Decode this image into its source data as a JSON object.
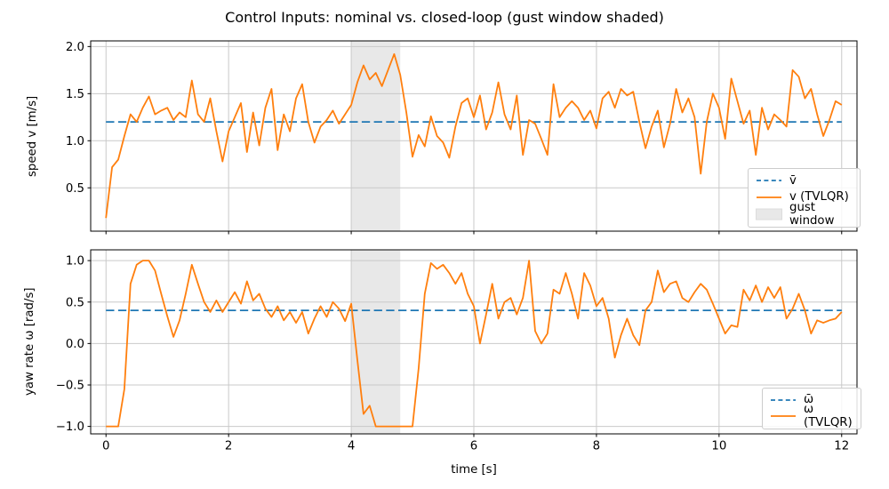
{
  "title": "Control Inputs: nominal vs. closed-loop (gust window shaded)",
  "chart_data": {
    "type": "line",
    "title": "Control Inputs: nominal vs. closed-loop (gust window shaded)",
    "xlabel": "time [s]",
    "xlim": [
      -0.25,
      12.25
    ],
    "xticks": [
      0,
      2,
      4,
      6,
      8,
      10,
      12
    ],
    "grid": true,
    "gust_window": {
      "start": 4.0,
      "end": 4.8,
      "label": "gust window",
      "color": "#e8e8e8"
    },
    "x": [
      0,
      0.1,
      0.2,
      0.3,
      0.4,
      0.5,
      0.6,
      0.7,
      0.8,
      0.9,
      1,
      1.1,
      1.2,
      1.3,
      1.4,
      1.5,
      1.6,
      1.7,
      1.8,
      1.9,
      2,
      2.1,
      2.2,
      2.3,
      2.4,
      2.5,
      2.6,
      2.7,
      2.8,
      2.9,
      3,
      3.1,
      3.2,
      3.3,
      3.4,
      3.5,
      3.6,
      3.7,
      3.8,
      3.9,
      4,
      4.1,
      4.2,
      4.3,
      4.4,
      4.5,
      4.6,
      4.7,
      4.8,
      4.9,
      5,
      5.1,
      5.2,
      5.3,
      5.4,
      5.5,
      5.6,
      5.7,
      5.8,
      5.9,
      6,
      6.1,
      6.2,
      6.3,
      6.4,
      6.5,
      6.6,
      6.7,
      6.8,
      6.9,
      7,
      7.1,
      7.2,
      7.3,
      7.4,
      7.5,
      7.6,
      7.7,
      7.8,
      7.9,
      8,
      8.1,
      8.2,
      8.3,
      8.4,
      8.5,
      8.6,
      8.7,
      8.8,
      8.9,
      9,
      9.1,
      9.2,
      9.3,
      9.4,
      9.5,
      9.6,
      9.7,
      9.8,
      9.9,
      10,
      10.1,
      10.2,
      10.3,
      10.4,
      10.5,
      10.6,
      10.7,
      10.8,
      10.9,
      11,
      11.1,
      11.2,
      11.3,
      11.4,
      11.5,
      11.6,
      11.7,
      11.8,
      11.9,
      12
    ],
    "subplots": [
      {
        "ylabel": "speed v [m/s]",
        "ylim": [
          0.04,
          2.06
        ],
        "yticks": [
          0.5,
          1.0,
          1.5,
          2.0
        ],
        "series": [
          {
            "name": "v̄",
            "style": "dashed",
            "color": "#1f77b4",
            "constant": 1.2
          },
          {
            "name": "v (TVLQR)",
            "style": "solid",
            "color": "#ff7f0e",
            "values": [
              0.18,
              0.72,
              0.8,
              1.05,
              1.28,
              1.2,
              1.35,
              1.47,
              1.28,
              1.32,
              1.35,
              1.22,
              1.3,
              1.25,
              1.64,
              1.28,
              1.2,
              1.45,
              1.1,
              0.78,
              1.1,
              1.25,
              1.4,
              0.88,
              1.3,
              0.95,
              1.35,
              1.55,
              0.9,
              1.28,
              1.1,
              1.45,
              1.6,
              1.2,
              0.98,
              1.15,
              1.22,
              1.32,
              1.18,
              1.28,
              1.38,
              1.62,
              1.8,
              1.65,
              1.72,
              1.58,
              1.75,
              1.92,
              1.7,
              1.3,
              0.83,
              1.06,
              0.94,
              1.26,
              1.05,
              0.98,
              0.82,
              1.15,
              1.4,
              1.45,
              1.25,
              1.48,
              1.12,
              1.3,
              1.62,
              1.28,
              1.12,
              1.48,
              0.85,
              1.22,
              1.18,
              1.02,
              0.85,
              1.6,
              1.25,
              1.35,
              1.42,
              1.35,
              1.22,
              1.32,
              1.13,
              1.45,
              1.52,
              1.35,
              1.55,
              1.48,
              1.52,
              1.2,
              0.92,
              1.15,
              1.32,
              0.93,
              1.18,
              1.55,
              1.3,
              1.45,
              1.25,
              0.65,
              1.2,
              1.5,
              1.35,
              1.02,
              1.66,
              1.42,
              1.18,
              1.32,
              0.85,
              1.35,
              1.12,
              1.28,
              1.22,
              1.15,
              1.75,
              1.68,
              1.45,
              1.55,
              1.28,
              1.05,
              1.22,
              1.42,
              1.38
            ]
          }
        ],
        "legend": [
          "v̄",
          "v (TVLQR)",
          "gust window"
        ],
        "legend_position": "lower right"
      },
      {
        "ylabel": "yaw rate ω [rad/s]",
        "ylim": [
          -1.09,
          1.13
        ],
        "yticks": [
          -1.0,
          -0.5,
          0.0,
          0.5,
          1.0
        ],
        "series": [
          {
            "name": "ω̄",
            "style": "dashed",
            "color": "#1f77b4",
            "constant": 0.4
          },
          {
            "name": "ω (TVLQR)",
            "style": "solid",
            "color": "#ff7f0e",
            "values": [
              -1.0,
              -1.0,
              -1.0,
              -0.55,
              0.72,
              0.95,
              1.0,
              1.0,
              0.88,
              0.6,
              0.33,
              0.08,
              0.28,
              0.6,
              0.95,
              0.72,
              0.5,
              0.38,
              0.52,
              0.38,
              0.5,
              0.62,
              0.48,
              0.75,
              0.52,
              0.6,
              0.42,
              0.32,
              0.45,
              0.28,
              0.38,
              0.25,
              0.38,
              0.12,
              0.3,
              0.45,
              0.32,
              0.5,
              0.42,
              0.27,
              0.48,
              -0.2,
              -0.85,
              -0.75,
              -1.0,
              -1.0,
              -1.0,
              -1.0,
              -1.0,
              -1.0,
              -1.0,
              -0.3,
              0.6,
              0.97,
              0.9,
              0.95,
              0.85,
              0.72,
              0.85,
              0.6,
              0.45,
              0.0,
              0.35,
              0.72,
              0.3,
              0.5,
              0.55,
              0.35,
              0.55,
              1.0,
              0.15,
              0.0,
              0.12,
              0.65,
              0.6,
              0.85,
              0.6,
              0.3,
              0.85,
              0.7,
              0.45,
              0.55,
              0.3,
              -0.17,
              0.1,
              0.3,
              0.1,
              -0.02,
              0.4,
              0.5,
              0.88,
              0.62,
              0.72,
              0.75,
              0.55,
              0.5,
              0.62,
              0.72,
              0.65,
              0.48,
              0.3,
              0.12,
              0.22,
              0.2,
              0.65,
              0.52,
              0.7,
              0.5,
              0.68,
              0.55,
              0.68,
              0.3,
              0.42,
              0.6,
              0.4,
              0.12,
              0.28,
              0.25,
              0.28,
              0.3,
              0.38
            ]
          }
        ],
        "legend": [
          "ω̄",
          "ω (TVLQR)"
        ],
        "legend_position": "lower right"
      }
    ]
  },
  "colors": {
    "nominal": "#1f77b4",
    "closed_loop": "#ff7f0e",
    "gust_shade": "#e8e8e8"
  }
}
